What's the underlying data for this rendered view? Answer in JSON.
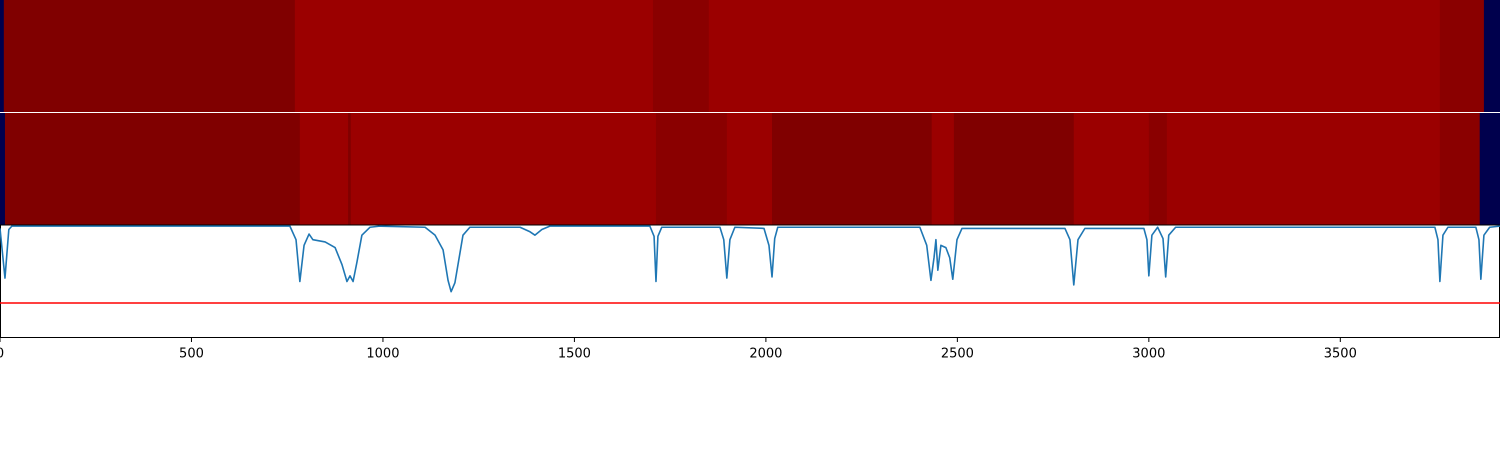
{
  "chart_data": [
    {
      "type": "heatmap",
      "colormap": "seismic",
      "clim": [
        0,
        1
      ],
      "xlim": [
        0,
        3917
      ],
      "x_edges": [
        0,
        10,
        770,
        1705,
        1851,
        3760,
        3875,
        3917
      ],
      "values": [
        0,
        1,
        0.946,
        0.98,
        0.946,
        0.98,
        0
      ]
    },
    {
      "type": "heatmap",
      "colormap": "seismic",
      "clim": [
        0,
        1
      ],
      "xlim": [
        0,
        3917
      ],
      "x_edges": [
        0,
        13,
        783,
        909,
        916,
        1713,
        1898,
        2016,
        2433,
        2491,
        2804,
        3000,
        3047,
        3760,
        3864,
        3917
      ],
      "values": [
        0,
        1,
        0.946,
        1,
        0.946,
        0.98,
        0.946,
        1,
        0.946,
        1,
        0.946,
        0.98,
        0.946,
        0.98,
        0
      ]
    },
    {
      "type": "line",
      "xlim": [
        0,
        3917
      ],
      "ylim": [
        0,
        1
      ],
      "xticks": [
        0,
        500,
        1000,
        1500,
        2000,
        2500,
        3000,
        3500
      ],
      "hline": {
        "value": 0.31,
        "color": "#ff0000"
      },
      "x": [
        0,
        13,
        23,
        31,
        757,
        773,
        783,
        794,
        807,
        817,
        849,
        875,
        893,
        906,
        914,
        922,
        932,
        945,
        966,
        992,
        1110,
        1136,
        1157,
        1170,
        1178,
        1188,
        1198,
        1209,
        1227,
        1358,
        1384,
        1397,
        1415,
        1436,
        1697,
        1708,
        1713,
        1718,
        1728,
        1880,
        1890,
        1898,
        1906,
        1919,
        1995,
        2008,
        2016,
        2023,
        2031,
        2402,
        2420,
        2431,
        2439,
        2444,
        2449,
        2457,
        2470,
        2480,
        2488,
        2499,
        2512,
        2781,
        2794,
        2804,
        2815,
        2833,
        2987,
        2995,
        3000,
        3008,
        3023,
        3037,
        3044,
        3052,
        3070,
        3747,
        3755,
        3760,
        3768,
        3781,
        3854,
        3862,
        3867,
        3875,
        3890,
        3917
      ],
      "series": [
        {
          "color": "#1f77b4",
          "values": [
            0.97,
            0.53,
            0.96,
            0.99,
            0.99,
            0.87,
            0.5,
            0.82,
            0.92,
            0.87,
            0.85,
            0.8,
            0.65,
            0.5,
            0.55,
            0.5,
            0.67,
            0.91,
            0.98,
            0.99,
            0.98,
            0.91,
            0.78,
            0.51,
            0.41,
            0.49,
            0.69,
            0.91,
            0.98,
            0.98,
            0.94,
            0.91,
            0.96,
            0.99,
            0.99,
            0.9,
            0.5,
            0.9,
            0.98,
            0.98,
            0.87,
            0.53,
            0.87,
            0.98,
            0.97,
            0.82,
            0.54,
            0.88,
            0.98,
            0.98,
            0.82,
            0.51,
            0.71,
            0.87,
            0.6,
            0.82,
            0.8,
            0.71,
            0.52,
            0.87,
            0.97,
            0.97,
            0.87,
            0.47,
            0.87,
            0.97,
            0.97,
            0.87,
            0.55,
            0.91,
            0.98,
            0.88,
            0.54,
            0.91,
            0.98,
            0.98,
            0.87,
            0.5,
            0.91,
            0.98,
            0.98,
            0.87,
            0.52,
            0.91,
            0.98,
            0.99
          ]
        }
      ]
    }
  ]
}
